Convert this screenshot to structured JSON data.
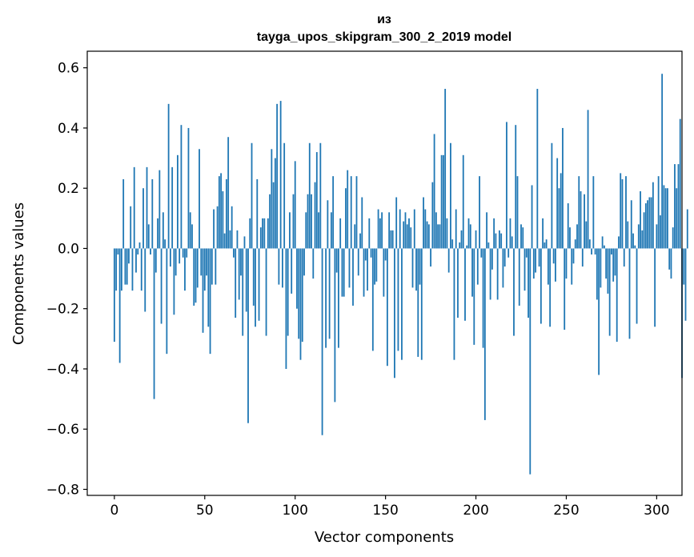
{
  "chart_data": {
    "type": "bar",
    "title_line1": "из",
    "title_line2": "tayga_upos_skipgram_300_2_2019 model",
    "xlabel": "Vector components",
    "ylabel": "Components values",
    "xlim": [
      -15,
      314
    ],
    "ylim": [
      -0.82,
      0.655
    ],
    "xticks": [
      0,
      50,
      100,
      150,
      200,
      250,
      300
    ],
    "xtick_labels": [
      "0",
      "50",
      "100",
      "150",
      "200",
      "250",
      "300"
    ],
    "yticks": [
      -0.8,
      -0.6,
      -0.4,
      -0.2,
      0.0,
      0.2,
      0.4,
      0.6
    ],
    "ytick_labels": [
      "−0.8",
      "−0.6",
      "−0.4",
      "−0.2",
      "0.0",
      "0.2",
      "0.4",
      "0.6"
    ],
    "bar_color": "#1f77b4",
    "values": [
      -0.31,
      -0.14,
      -0.02,
      -0.38,
      -0.14,
      0.23,
      -0.12,
      -0.12,
      -0.05,
      0.14,
      -0.14,
      0.27,
      -0.08,
      -0.02,
      0.02,
      -0.14,
      0.2,
      -0.21,
      0.27,
      0.08,
      -0.02,
      0.23,
      -0.5,
      -0.08,
      0.1,
      0.26,
      -0.25,
      0.12,
      0.03,
      -0.35,
      0.48,
      -0.06,
      0.27,
      -0.22,
      -0.09,
      0.31,
      -0.05,
      0.41,
      -0.03,
      -0.14,
      -0.03,
      0.4,
      0.12,
      0.08,
      -0.19,
      -0.18,
      -0.13,
      0.33,
      -0.09,
      -0.28,
      -0.14,
      -0.09,
      -0.26,
      -0.35,
      -0.12,
      0.13,
      -0.12,
      0.14,
      0.24,
      0.25,
      0.19,
      0.05,
      0.23,
      0.37,
      0.06,
      0.14,
      -0.03,
      -0.23,
      0.06,
      -0.17,
      -0.09,
      -0.29,
      0.04,
      -0.21,
      -0.58,
      0.1,
      0.35,
      -0.19,
      -0.26,
      0.23,
      -0.24,
      0.07,
      0.1,
      0.1,
      -0.29,
      0.1,
      0.18,
      0.33,
      0.22,
      0.3,
      0.48,
      -0.12,
      0.49,
      -0.13,
      0.35,
      -0.4,
      -0.29,
      0.12,
      -0.15,
      0.18,
      0.29,
      -0.2,
      -0.3,
      -0.37,
      -0.31,
      -0.09,
      0.12,
      0.18,
      0.35,
      0.18,
      -0.1,
      0.22,
      0.32,
      0.12,
      0.35,
      -0.62,
      0.0,
      -0.33,
      0.16,
      -0.3,
      0.12,
      0.24,
      -0.51,
      -0.08,
      -0.33,
      0.1,
      -0.16,
      -0.16,
      0.2,
      0.26,
      -0.13,
      0.24,
      -0.19,
      0.08,
      0.24,
      -0.09,
      0.05,
      0.17,
      -0.16,
      -0.04,
      -0.14,
      0.1,
      -0.03,
      -0.34,
      -0.12,
      -0.11,
      0.13,
      0.1,
      0.12,
      -0.16,
      -0.04,
      -0.39,
      0.12,
      0.06,
      0.06,
      -0.43,
      0.17,
      -0.34,
      0.13,
      -0.37,
      0.09,
      0.12,
      0.08,
      0.1,
      0.07,
      -0.13,
      0.13,
      -0.14,
      -0.36,
      -0.12,
      -0.37,
      0.17,
      0.13,
      0.09,
      0.08,
      -0.06,
      0.22,
      0.38,
      0.12,
      0.08,
      0.08,
      0.31,
      0.31,
      0.53,
      0.1,
      -0.08,
      0.35,
      0.03,
      -0.37,
      0.13,
      -0.23,
      0.02,
      0.06,
      0.31,
      -0.24,
      0.01,
      0.1,
      0.08,
      -0.16,
      -0.32,
      0.06,
      -0.12,
      0.24,
      -0.03,
      -0.33,
      -0.57,
      0.12,
      0.02,
      -0.17,
      -0.07,
      0.1,
      0.05,
      -0.17,
      0.06,
      0.05,
      -0.13,
      -0.06,
      0.42,
      -0.03,
      0.1,
      0.04,
      -0.29,
      0.41,
      0.24,
      -0.19,
      0.08,
      0.07,
      -0.14,
      -0.03,
      -0.23,
      -0.75,
      0.21,
      -0.1,
      -0.08,
      0.53,
      -0.06,
      -0.25,
      0.1,
      0.02,
      0.03,
      -0.12,
      -0.26,
      0.35,
      -0.05,
      -0.11,
      0.3,
      0.2,
      0.25,
      0.4,
      -0.27,
      -0.1,
      0.15,
      0.07,
      -0.12,
      -0.05,
      0.03,
      0.08,
      0.24,
      0.19,
      -0.06,
      0.18,
      0.09,
      0.46,
      0.03,
      -0.02,
      0.24,
      -0.02,
      -0.17,
      -0.42,
      -0.13,
      0.04,
      0.01,
      -0.1,
      -0.15,
      -0.29,
      -0.02,
      -0.11,
      -0.09,
      -0.31,
      0.04,
      0.25,
      0.23,
      -0.06,
      0.24,
      0.09,
      -0.3,
      0.16,
      0.05,
      0.01,
      -0.25,
      0.08,
      0.19,
      0.06,
      0.12,
      0.15,
      0.16,
      0.17,
      0.17,
      0.22,
      -0.26,
      0.08,
      0.24,
      0.11,
      0.58,
      0.21,
      0.2,
      0.2,
      -0.07,
      -0.1,
      0.07,
      0.28,
      0.2,
      0.28,
      0.43,
      -0.43,
      -0.12,
      -0.24,
      0.13
    ]
  }
}
